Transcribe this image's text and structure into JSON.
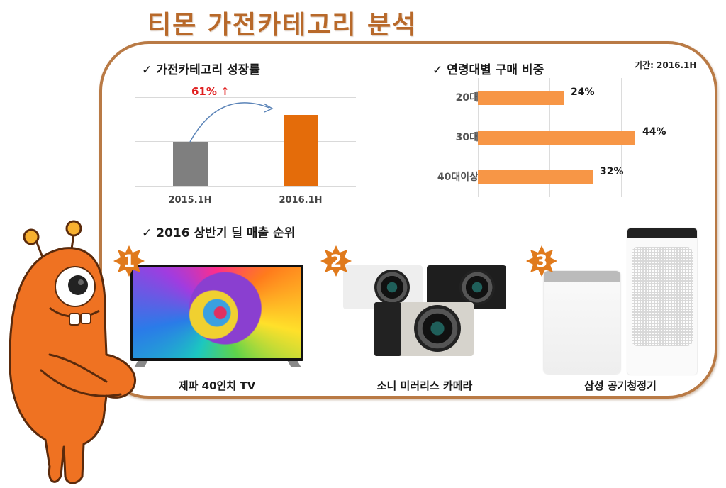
{
  "page": {
    "title": "티몬 가전카테고리 분석",
    "accent_color": "#b8692a",
    "frame_color": "#b97a45"
  },
  "growth_section": {
    "title": "가전카테고리 성장률",
    "check_icon": "✓",
    "growth_label": "61% ↑",
    "growth_color": "#e02020"
  },
  "age_section": {
    "title": "연령대별 구매 비중",
    "check_icon": "✓",
    "period": "기간: 2016.1H"
  },
  "ranking_section": {
    "title": "2016 상반기 딜 매출 순위",
    "check_icon": "✓",
    "products": [
      {
        "rank": "1",
        "name": "제파 40인치 TV",
        "icon": "tv-image"
      },
      {
        "rank": "2",
        "name": "소니 미러리스 카메라",
        "icon": "camera-image"
      },
      {
        "rank": "3",
        "name": "삼성 공기청정기",
        "icon": "air-purifier-image"
      }
    ],
    "badge_color": "#e07a1c"
  },
  "chart_data": [
    {
      "type": "bar",
      "title": "가전카테고리 성장률",
      "categories": [
        "2015.1H",
        "2016.1H"
      ],
      "values": [
        100,
        161
      ],
      "colors": [
        "#7f7f7f",
        "#e46c0a"
      ],
      "annotation": "61% ↑",
      "xlabel": "",
      "ylabel": "",
      "grid": true,
      "axis_labels_visible": false
    },
    {
      "type": "bar",
      "orientation": "horizontal",
      "title": "연령대별 구매 비중",
      "subtitle": "기간: 2016.1H",
      "categories": [
        "20대",
        "30대",
        "40대이상"
      ],
      "values": [
        24,
        44,
        32
      ],
      "value_labels": [
        "24%",
        "44%",
        "32%"
      ],
      "color": "#f79646",
      "xlim": [
        0,
        60
      ],
      "grid": true,
      "unit": "%"
    }
  ]
}
